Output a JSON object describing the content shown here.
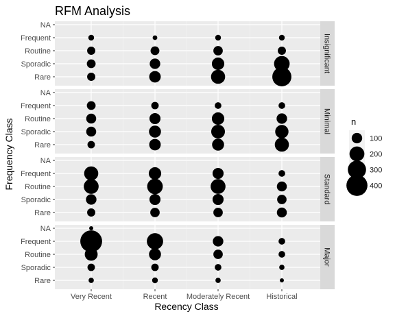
{
  "chart_data": {
    "type": "scatter",
    "title": "RFM Analysis",
    "xlabel": "Recency Class",
    "ylabel": "Frequency Class",
    "x_categories": [
      "Very Recent",
      "Recent",
      "Moderately Recent",
      "Historical"
    ],
    "y_categories": [
      "Rare",
      "Sporadic",
      "Routine",
      "Frequent",
      "NA"
    ],
    "grid": true,
    "legend": {
      "title": "n",
      "position": "right",
      "sizes": [
        100,
        200,
        300,
        400
      ],
      "labels": [
        "100",
        "200",
        "300",
        "400"
      ]
    },
    "facets": [
      {
        "label": "Insignificant",
        "points": [
          {
            "x": "Very Recent",
            "y": "Frequent",
            "n": 30
          },
          {
            "x": "Very Recent",
            "y": "Routine",
            "n": 60
          },
          {
            "x": "Very Recent",
            "y": "Sporadic",
            "n": 70
          },
          {
            "x": "Very Recent",
            "y": "Rare",
            "n": 60
          },
          {
            "x": "Recent",
            "y": "Frequent",
            "n": 20
          },
          {
            "x": "Recent",
            "y": "Routine",
            "n": 70
          },
          {
            "x": "Recent",
            "y": "Sporadic",
            "n": 100
          },
          {
            "x": "Recent",
            "y": "Rare",
            "n": 120
          },
          {
            "x": "Moderately Recent",
            "y": "Frequent",
            "n": 30
          },
          {
            "x": "Moderately Recent",
            "y": "Routine",
            "n": 80
          },
          {
            "x": "Moderately Recent",
            "y": "Sporadic",
            "n": 140
          },
          {
            "x": "Moderately Recent",
            "y": "Rare",
            "n": 180
          },
          {
            "x": "Historical",
            "y": "Frequent",
            "n": 30
          },
          {
            "x": "Historical",
            "y": "Routine",
            "n": 60
          },
          {
            "x": "Historical",
            "y": "Sporadic",
            "n": 220
          },
          {
            "x": "Historical",
            "y": "Rare",
            "n": 330
          }
        ]
      },
      {
        "label": "Minimal",
        "points": [
          {
            "x": "Very Recent",
            "y": "Frequent",
            "n": 70
          },
          {
            "x": "Very Recent",
            "y": "Routine",
            "n": 90
          },
          {
            "x": "Very Recent",
            "y": "Sporadic",
            "n": 90
          },
          {
            "x": "Very Recent",
            "y": "Rare",
            "n": 50
          },
          {
            "x": "Recent",
            "y": "Frequent",
            "n": 50
          },
          {
            "x": "Recent",
            "y": "Routine",
            "n": 110
          },
          {
            "x": "Recent",
            "y": "Sporadic",
            "n": 130
          },
          {
            "x": "Recent",
            "y": "Rare",
            "n": 120
          },
          {
            "x": "Moderately Recent",
            "y": "Frequent",
            "n": 40
          },
          {
            "x": "Moderately Recent",
            "y": "Routine",
            "n": 140
          },
          {
            "x": "Moderately Recent",
            "y": "Sporadic",
            "n": 170
          },
          {
            "x": "Moderately Recent",
            "y": "Rare",
            "n": 130
          },
          {
            "x": "Historical",
            "y": "Frequent",
            "n": 40
          },
          {
            "x": "Historical",
            "y": "Routine",
            "n": 100
          },
          {
            "x": "Historical",
            "y": "Sporadic",
            "n": 160
          },
          {
            "x": "Historical",
            "y": "Rare",
            "n": 180
          }
        ]
      },
      {
        "label": "Standard",
        "points": [
          {
            "x": "Very Recent",
            "y": "Frequent",
            "n": 180
          },
          {
            "x": "Very Recent",
            "y": "Routine",
            "n": 200
          },
          {
            "x": "Very Recent",
            "y": "Sporadic",
            "n": 100
          },
          {
            "x": "Very Recent",
            "y": "Rare",
            "n": 60
          },
          {
            "x": "Recent",
            "y": "Frequent",
            "n": 140
          },
          {
            "x": "Recent",
            "y": "Routine",
            "n": 220
          },
          {
            "x": "Recent",
            "y": "Sporadic",
            "n": 110
          },
          {
            "x": "Recent",
            "y": "Rare",
            "n": 80
          },
          {
            "x": "Moderately Recent",
            "y": "Frequent",
            "n": 110
          },
          {
            "x": "Moderately Recent",
            "y": "Routine",
            "n": 200
          },
          {
            "x": "Moderately Recent",
            "y": "Sporadic",
            "n": 110
          },
          {
            "x": "Moderately Recent",
            "y": "Rare",
            "n": 80
          },
          {
            "x": "Historical",
            "y": "Frequent",
            "n": 40
          },
          {
            "x": "Historical",
            "y": "Routine",
            "n": 90
          },
          {
            "x": "Historical",
            "y": "Sporadic",
            "n": 80
          },
          {
            "x": "Historical",
            "y": "Rare",
            "n": 90
          }
        ]
      },
      {
        "label": "Major",
        "points": [
          {
            "x": "Very Recent",
            "y": "NA",
            "n": 15
          },
          {
            "x": "Very Recent",
            "y": "Frequent",
            "n": 430
          },
          {
            "x": "Very Recent",
            "y": "Routine",
            "n": 150
          },
          {
            "x": "Very Recent",
            "y": "Sporadic",
            "n": 50
          },
          {
            "x": "Very Recent",
            "y": "Rare",
            "n": 25
          },
          {
            "x": "Recent",
            "y": "Frequent",
            "n": 240
          },
          {
            "x": "Recent",
            "y": "Routine",
            "n": 130
          },
          {
            "x": "Recent",
            "y": "Sporadic",
            "n": 50
          },
          {
            "x": "Recent",
            "y": "Rare",
            "n": 30
          },
          {
            "x": "Moderately Recent",
            "y": "Frequent",
            "n": 100
          },
          {
            "x": "Moderately Recent",
            "y": "Routine",
            "n": 80
          },
          {
            "x": "Moderately Recent",
            "y": "Sporadic",
            "n": 40
          },
          {
            "x": "Moderately Recent",
            "y": "Rare",
            "n": 25
          },
          {
            "x": "Historical",
            "y": "Frequent",
            "n": 40
          },
          {
            "x": "Historical",
            "y": "Routine",
            "n": 40
          },
          {
            "x": "Historical",
            "y": "Sporadic",
            "n": 25
          },
          {
            "x": "Historical",
            "y": "Rare",
            "n": 15
          }
        ]
      }
    ]
  },
  "colors": {
    "panel_background": "#ebebeb",
    "strip_background": "#d9d9d9",
    "grid_major": "#ffffff",
    "point_fill": "#000000"
  }
}
